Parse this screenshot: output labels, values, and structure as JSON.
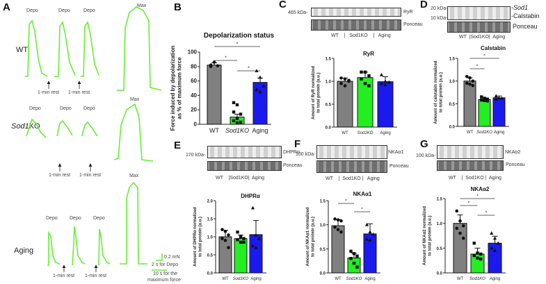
{
  "panels": {
    "A": "A",
    "B": "B",
    "C": "C",
    "D": "D",
    "E": "E",
    "F": "F",
    "G": "G"
  },
  "panelA": {
    "rows": [
      "WT",
      "Sod1KO",
      "Aging"
    ],
    "row_italic_part": "Sod1",
    "row_rest": "KO",
    "depo": "Depo",
    "max": "Max",
    "rest": "1-min rest",
    "scale_force": "0.2 mN",
    "scale_depo": "2 s for Depo",
    "scale_max_1": "10 s for the",
    "scale_max_2": "maximum force",
    "trace_color": "#66ee33"
  },
  "blots": {
    "C": {
      "kda": "465 kDa-",
      "band": "RyR",
      "ponceau": "Ponceau",
      "groups": "WT    |   Sod1KO    |   Aging"
    },
    "D": {
      "kda1": "20 kDa-",
      "kda2": "10 kDa-",
      "band1": "-Sod1",
      "band2": "-Calstabin",
      "ponceau": "Ponceau",
      "groups": "WT  |Sod1KO|  Aging"
    },
    "E": {
      "kda": "170 kDa-",
      "band": "DHPRα",
      "ponceau": "Ponceau",
      "groups": "WT    |Sod1KO|  Aging"
    },
    "F": {
      "kda": "100 kDa-",
      "band": "NKAα1",
      "ponceau": "Ponceau",
      "groups": "WT    |  Sod1KO |   Aging"
    },
    "G": {
      "kda": "100 kDa-",
      "band": "NKAα2",
      "ponceau": "Ponceau",
      "groups": "WT    |  Sod1KO |  Aging"
    }
  },
  "colors": {
    "WT": "#808080",
    "Sod1KO": "#22ee22",
    "Aging": "#1a1aee"
  },
  "chart_data": [
    {
      "id": "B",
      "type": "bar",
      "title": "Depolarization status",
      "ylabel": [
        "Force induced by depolarization",
        "as % of maximum force"
      ],
      "categories": [
        "WT",
        "Sod1KO",
        "Aging"
      ],
      "values": [
        82,
        10,
        58
      ],
      "errors": [
        3,
        4,
        6
      ],
      "ylim": [
        0,
        100
      ],
      "yticks": [
        0,
        20,
        40,
        60,
        80,
        100
      ],
      "points": [
        [
          82,
          86,
          81,
          80
        ],
        [
          30,
          27,
          14,
          17,
          8,
          3,
          5,
          2
        ],
        [
          74,
          65,
          53,
          48,
          45
        ]
      ],
      "markers": [
        "circle",
        "square",
        "triangle"
      ],
      "significance": [
        [
          0,
          1
        ],
        [
          0,
          2
        ],
        [
          1,
          2
        ]
      ],
      "sig_label": "*"
    },
    {
      "id": "C",
      "type": "bar",
      "title": "RyR",
      "ylabel": [
        "Amount of RyR normalized",
        "to total protein (a.u.)"
      ],
      "categories": [
        "WT",
        "Sod1KO",
        "Aging"
      ],
      "values": [
        1.0,
        1.08,
        0.99
      ],
      "errors": [
        0.07,
        0.12,
        0.11
      ],
      "ylim": [
        0,
        1.5
      ],
      "yticks": [
        0.0,
        0.5,
        1.0,
        1.5
      ],
      "points": [
        [
          1.07,
          1.05,
          1.0,
          0.95,
          0.9,
          1.02
        ],
        [
          1.2,
          1.2,
          1.12,
          1.05,
          0.95,
          0.9
        ],
        [
          1.14,
          1.0,
          0.98,
          0.95,
          0.92
        ]
      ],
      "markers": [
        "circle",
        "square",
        "triangle"
      ],
      "significance": [],
      "sig_label": "*"
    },
    {
      "id": "D",
      "type": "bar",
      "title": "Calstabin",
      "ylabel": [
        "Amount of calstabin normalized",
        "to total protein (a.u.)"
      ],
      "categories": [
        "WT",
        "Sod1KO",
        "Aging"
      ],
      "values": [
        1.0,
        0.59,
        0.63
      ],
      "errors": [
        0.07,
        0.04,
        0.04
      ],
      "ylim": [
        0,
        1.5
      ],
      "yticks": [
        0.0,
        0.5,
        1.0,
        1.5
      ],
      "points": [
        [
          1.1,
          1.07,
          1.0,
          0.95,
          0.93,
          0.9
        ],
        [
          0.65,
          0.62,
          0.6,
          0.58,
          0.57,
          0.56
        ],
        [
          0.67,
          0.63,
          0.62,
          0.6
        ]
      ],
      "markers": [
        "circle",
        "square",
        "triangle"
      ],
      "significance": [
        [
          0,
          1
        ],
        [
          0,
          2
        ]
      ],
      "sig_label": "*"
    },
    {
      "id": "E",
      "type": "bar",
      "title": "DHPRα",
      "ylabel": [
        "Amount of DHPRα normalized",
        "to total protein (a.u.)"
      ],
      "categories": [
        "WT",
        "Sod1KO",
        "Aging"
      ],
      "values": [
        1.0,
        0.95,
        1.06
      ],
      "errors": [
        0.18,
        0.1,
        0.39
      ],
      "ylim": [
        0,
        2
      ],
      "yticks": [
        0.0,
        0.5,
        1.0,
        1.5,
        2.0
      ],
      "points": [
        [
          1.2,
          1.15,
          1.05,
          0.95,
          0.9,
          0.7
        ],
        [
          1.13,
          1.0,
          0.95,
          0.92,
          0.85,
          0.85
        ],
        [
          1.8,
          1.05,
          0.95,
          0.75,
          0.7
        ]
      ],
      "markers": [
        "circle",
        "square",
        "triangle"
      ],
      "significance": [],
      "sig_label": "*"
    },
    {
      "id": "F",
      "type": "bar",
      "title": "NKAα1",
      "ylabel": [
        "Amount of NKAα1 normalized",
        "to total protein (a.u.)"
      ],
      "categories": [
        "WT",
        "Sod1KO",
        "Aging"
      ],
      "values": [
        0.98,
        0.31,
        0.81
      ],
      "errors": [
        0.13,
        0.1,
        0.21
      ],
      "ylim": [
        0,
        1.5
      ],
      "yticks": [
        0.0,
        0.5,
        1.0,
        1.5
      ],
      "points": [
        [
          1.12,
          1.1,
          1.08,
          0.95,
          0.9,
          0.85
        ],
        [
          0.45,
          0.4,
          0.35,
          0.3,
          0.2,
          0.12
        ],
        [
          1.0,
          0.85,
          0.8,
          0.7,
          0.68
        ]
      ],
      "markers": [
        "circle",
        "square",
        "triangle"
      ],
      "significance": [
        [
          0,
          1
        ],
        [
          1,
          2
        ]
      ],
      "sig_label": "*"
    },
    {
      "id": "G",
      "type": "bar",
      "title": "NKAα2",
      "ylabel": [
        "Amount of NKAα2 normalized",
        "to total protein (a.u.)"
      ],
      "categories": [
        "WT",
        "Sod1KO",
        "Aging"
      ],
      "values": [
        1.0,
        0.38,
        0.6
      ],
      "errors": [
        0.17,
        0.12,
        0.14
      ],
      "ylim": [
        0,
        1.5
      ],
      "yticks": [
        0.0,
        0.5,
        1.0,
        1.5
      ],
      "points": [
        [
          1.25,
          1.05,
          0.95,
          0.9,
          0.8,
          0.7
        ],
        [
          0.6,
          0.4,
          0.38,
          0.35,
          0.3,
          0.28
        ],
        [
          0.8,
          0.7,
          0.6,
          0.5,
          0.45
        ]
      ],
      "markers": [
        "circle",
        "square",
        "triangle"
      ],
      "significance": [
        [
          0,
          1
        ],
        [
          0,
          2
        ],
        [
          1,
          2
        ]
      ],
      "sig_label": "*"
    }
  ]
}
